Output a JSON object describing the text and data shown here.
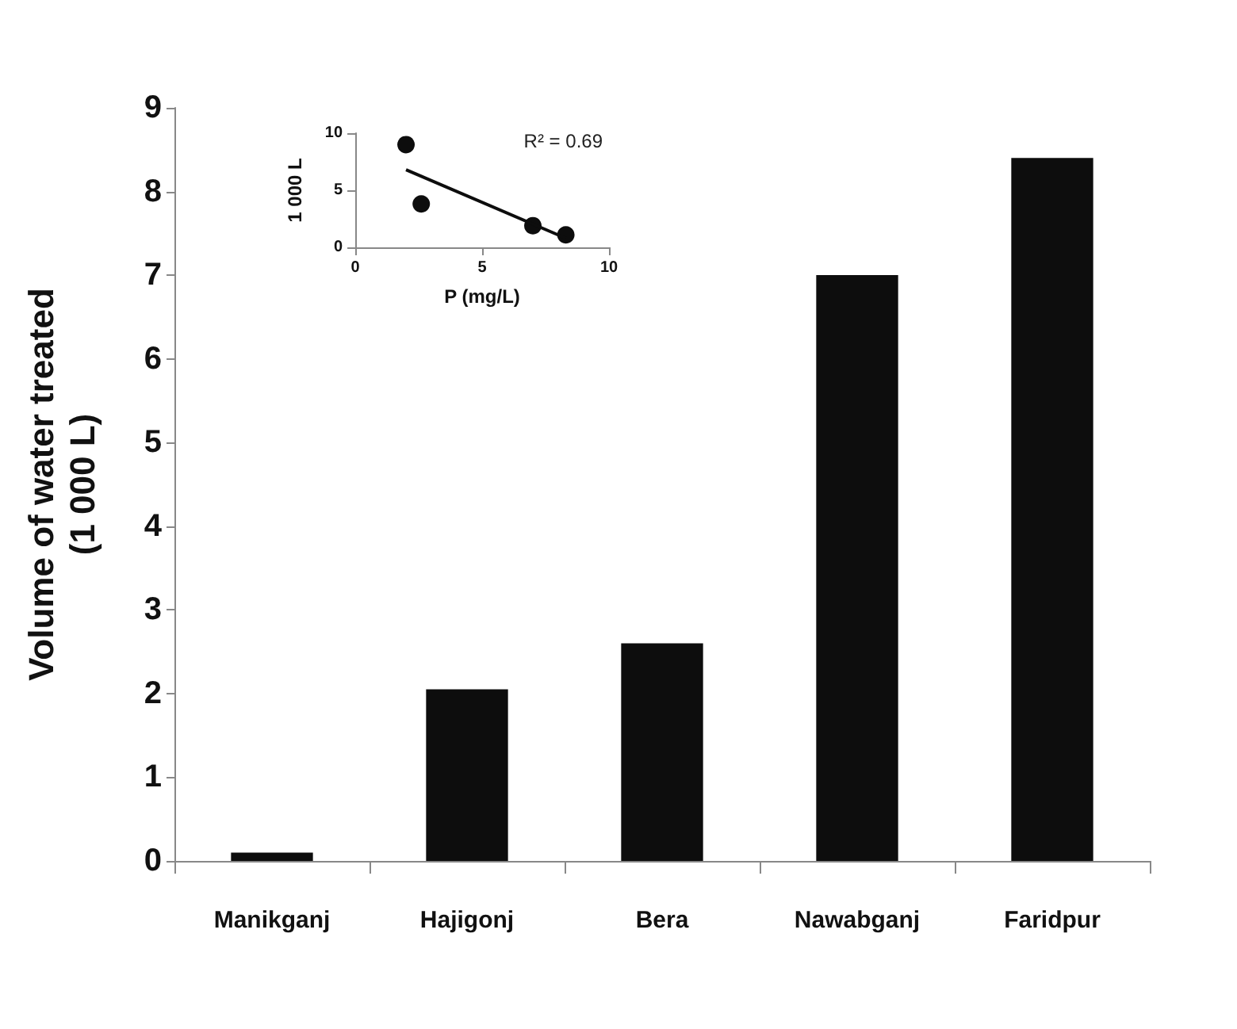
{
  "chart_data": [
    {
      "type": "bar",
      "ylabel": "Volume of water treated\n(1 000 L)",
      "categories": [
        "Manikganj",
        "Hajigonj",
        "Bera",
        "Nawabganj",
        "Faridpur"
      ],
      "series": [
        {
          "color": "#0d0d0d",
          "values": [
            0.1,
            2.05,
            2.6,
            7.0,
            8.4
          ]
        }
      ],
      "ylim": [
        0,
        9
      ],
      "yticks": [
        0,
        1,
        2,
        3,
        4,
        5,
        6,
        7,
        8,
        9
      ],
      "grid": false
    },
    {
      "type": "scatter",
      "xlabel": "P (mg/L)",
      "ylabel": "1 000 L",
      "annotations": [
        "R² = 0.69"
      ],
      "series": [
        {
          "color": "#0d0d0d",
          "x": [
            2.0,
            2.6,
            7.0,
            8.3
          ],
          "values": [
            9.0,
            3.8,
            1.9,
            1.1
          ],
          "marker": "circle"
        },
        {
          "type": "line",
          "color": "#0d0d0d",
          "x": [
            2.0,
            8.3
          ],
          "values": [
            6.8,
            0.8
          ],
          "marker": "none",
          "line_style": "solid"
        }
      ],
      "xlim": [
        0,
        10
      ],
      "xticks": [
        0,
        5,
        10
      ],
      "ylim": [
        0,
        10
      ],
      "yticks": [
        0,
        5,
        10
      ],
      "grid": false
    }
  ]
}
